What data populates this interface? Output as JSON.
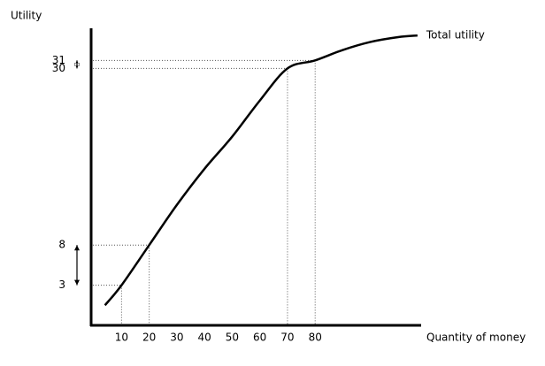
{
  "chart_data": {
    "type": "line",
    "y_label": "Utility",
    "x_label": "Quantity  of money",
    "x": [
      4,
      10,
      20,
      30,
      40,
      50,
      60,
      70,
      80,
      90,
      100,
      110,
      117
    ],
    "series": [
      {
        "name": "Total utility",
        "color": "#000000",
        "values": [
          0.5,
          3,
          8,
          13,
          17.5,
          21.5,
          26,
          30,
          31,
          32.3,
          33.3,
          33.9,
          34.1
        ]
      }
    ],
    "highlighted_points": {
      "x": [
        10,
        20,
        70,
        80
      ],
      "y": [
        3,
        8,
        30,
        31
      ]
    },
    "xlim": [
      -1,
      118
    ],
    "ylim": [
      -2,
      35
    ],
    "xticks": [
      10,
      20,
      30,
      40,
      50,
      60,
      70,
      80
    ],
    "yticks": [
      3,
      8,
      30,
      31
    ],
    "grid": false
  }
}
